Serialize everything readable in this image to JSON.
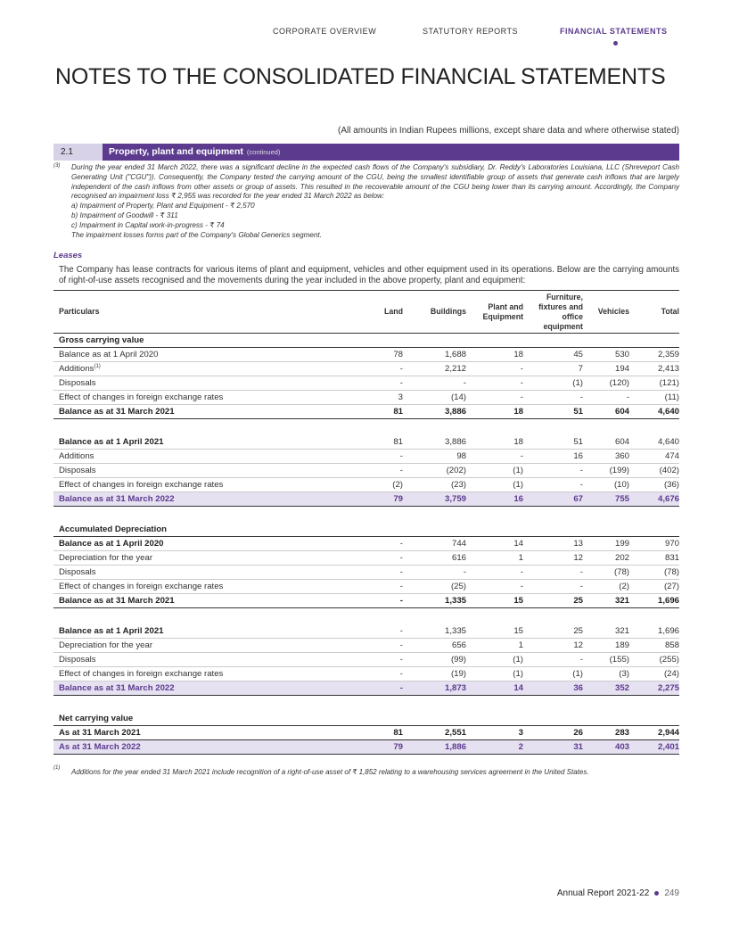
{
  "nav": [
    "CORPORATE OVERVIEW",
    "STATUTORY REPORTS",
    "FINANCIAL STATEMENTS"
  ],
  "title": "NOTES TO THE CONSOLIDATED FINANCIAL STATEMENTS",
  "amounts_note": "(All amounts in Indian Rupees millions, except share data and where otherwise stated)",
  "section": {
    "number": "2.1",
    "title": "Property, plant and equipment",
    "suffix": "(continued)"
  },
  "footnote_3": {
    "marker": "(3)",
    "text": "During the year ended 31 March 2022, there was a significant decline in the expected cash flows of the Company's subsidiary, Dr. Reddy's Laboratories Louisiana, LLC (Shreveport Cash Generating Unit (\"CGU\")). Consequently, the Company tested the carrying amount of the CGU, being the smallest identifiable group of assets that generate cash inflows that are largely independent of the cash inflows from other assets or group of assets. This resulted in the recoverable amount of the CGU being lower than its carrying amount. Accordingly, the Company recognised an impairment loss ₹ 2,955 was recorded for the year ended 31 March 2022 as below:",
    "items": [
      "a)  Impairment of Property, Plant and Equipment - ₹ 2,570",
      "b)  Impairment of Goodwill - ₹ 311",
      "c)  Impairment in Capital work-in-progress - ₹ 74"
    ],
    "closing": "The impairment losses forms part of the Company's Global Generics segment."
  },
  "leases": {
    "heading": "Leases",
    "text": "The Company has lease contracts for various items of plant and equipment, vehicles and other equipment used in its operations. Below are the carrying amounts of right-of-use assets recognised and the movements during the year included in the above property, plant and equipment:"
  },
  "table": {
    "columns": [
      "Particulars",
      "Land",
      "Buildings",
      "Plant and Equipment",
      "Furniture, fixtures and office equipment",
      "Vehicles",
      "Total"
    ],
    "groups": [
      {
        "heading": "Gross carrying value",
        "rows": [
          {
            "label": "Balance as at 1 April 2020",
            "values": [
              "78",
              "1,688",
              "18",
              "45",
              "530",
              "2,359"
            ]
          },
          {
            "label": "Additions",
            "note": "(1)",
            "values": [
              "-",
              "2,212",
              "-",
              "7",
              "194",
              "2,413"
            ]
          },
          {
            "label": "Disposals",
            "values": [
              "-",
              "-",
              "-",
              "(1)",
              "(120)",
              "(121)"
            ]
          },
          {
            "label": "Effect of changes in foreign exchange rates",
            "values": [
              "3",
              "(14)",
              "-",
              "-",
              "-",
              "(11)"
            ]
          }
        ],
        "total": {
          "label": "Balance as at 31 March 2021",
          "values": [
            "81",
            "3,886",
            "18",
            "51",
            "604",
            "4,640"
          ]
        }
      },
      {
        "rows": [
          {
            "label": "Balance as at 1 April 2021",
            "values": [
              "81",
              "3,886",
              "18",
              "51",
              "604",
              "4,640"
            ]
          },
          {
            "label": "Additions",
            "values": [
              "-",
              "98",
              "-",
              "16",
              "360",
              "474"
            ]
          },
          {
            "label": "Disposals",
            "values": [
              "-",
              "(202)",
              "(1)",
              "-",
              "(199)",
              "(402)"
            ]
          },
          {
            "label": "Effect of changes in foreign exchange rates",
            "values": [
              "(2)",
              "(23)",
              "(1)",
              "-",
              "(10)",
              "(36)"
            ]
          }
        ],
        "total": {
          "label": "Balance as at 31 March 2022",
          "values": [
            "79",
            "3,759",
            "16",
            "67",
            "755",
            "4,676"
          ]
        }
      },
      {
        "heading": "Accumulated Depreciation",
        "rows": [
          {
            "label": "Balance as at 1 April 2020",
            "values": [
              "-",
              "744",
              "14",
              "13",
              "199",
              "970"
            ]
          },
          {
            "label": "Depreciation for the year",
            "values": [
              "-",
              "616",
              "1",
              "12",
              "202",
              "831"
            ]
          },
          {
            "label": "Disposals",
            "values": [
              "-",
              "-",
              "-",
              "-",
              "(78)",
              "(78)"
            ]
          },
          {
            "label": "Effect of changes in foreign exchange rates",
            "values": [
              "-",
              "(25)",
              "-",
              "-",
              "(2)",
              "(27)"
            ]
          }
        ],
        "total": {
          "label": "Balance as at 31 March 2021",
          "values": [
            "-",
            "1,335",
            "15",
            "25",
            "321",
            "1,696"
          ]
        }
      },
      {
        "rows": [
          {
            "label": "Balance as at 1 April 2021",
            "values": [
              "-",
              "1,335",
              "15",
              "25",
              "321",
              "1,696"
            ]
          },
          {
            "label": "Depreciation for the year",
            "values": [
              "-",
              "656",
              "1",
              "12",
              "189",
              "858"
            ]
          },
          {
            "label": "Disposals",
            "values": [
              "-",
              "(99)",
              "(1)",
              "-",
              "(155)",
              "(255)"
            ]
          },
          {
            "label": "Effect of changes in foreign exchange rates",
            "values": [
              "-",
              "(19)",
              "(1)",
              "(1)",
              "(3)",
              "(24)"
            ]
          }
        ],
        "total": {
          "label": "Balance as at 31 March 2022",
          "values": [
            "-",
            "1,873",
            "14",
            "36",
            "352",
            "2,275"
          ]
        }
      },
      {
        "heading": "Net carrying value",
        "rows": [
          {
            "label": "As at 31 March 2021",
            "values": [
              "81",
              "2,551",
              "3",
              "26",
              "283",
              "2,944"
            ]
          }
        ],
        "total": {
          "label": "As at 31 March 2022",
          "values": [
            "79",
            "1,886",
            "2",
            "31",
            "403",
            "2,401"
          ]
        }
      }
    ]
  },
  "footnote_1": {
    "marker": "(1)",
    "text": "Additions for the year ended 31 March 2021 include recognition of a right-of-use asset of ₹ 1,852 relating to a warehousing services agreement in the United States."
  },
  "footer": {
    "text": "Annual Report 2021-22",
    "page": "249"
  }
}
